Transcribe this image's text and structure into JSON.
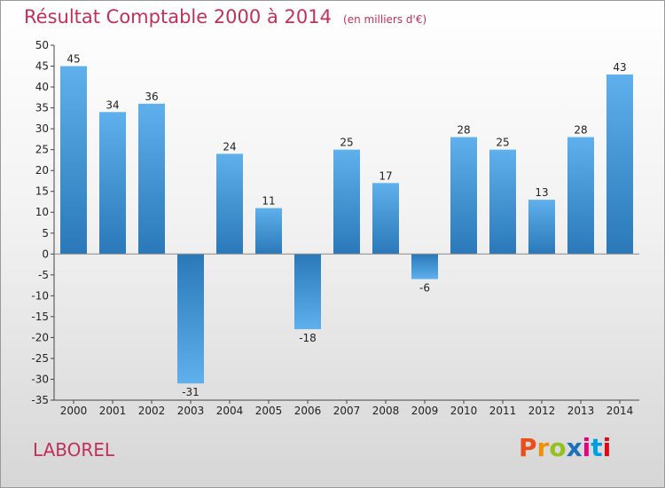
{
  "header": {
    "title": "Résultat Comptable 2000 à 2014",
    "subtitle": "(en milliers d'€)"
  },
  "footer": {
    "commune": "LABOREL",
    "brand_letters": [
      "P",
      "r",
      "o",
      "x",
      "i",
      "t",
      "i"
    ],
    "brand_colors": [
      "#e94e1b",
      "#f29100",
      "#95c11f",
      "#1d71b8",
      "#e6007e",
      "#009fe3",
      "#e30613"
    ]
  },
  "colors": {
    "title": "#c0305a",
    "bar_dark": "#2a78b8",
    "bar_light": "#5fb0ec",
    "axis": "#444444",
    "grid": "#bfbfbf"
  },
  "chart_data": {
    "type": "bar",
    "categories": [
      "2000",
      "2001",
      "2002",
      "2003",
      "2004",
      "2005",
      "2006",
      "2007",
      "2008",
      "2009",
      "2010",
      "2011",
      "2012",
      "2013",
      "2014"
    ],
    "values": [
      45,
      34,
      36,
      -31,
      24,
      11,
      -18,
      25,
      17,
      -6,
      28,
      25,
      13,
      28,
      43
    ],
    "labels": [
      "45",
      "34",
      "36",
      "-31",
      "24",
      "11",
      "-18",
      "25",
      "17",
      "-6",
      "28",
      "25",
      "13",
      "28",
      "43"
    ],
    "ylim": [
      -35,
      50
    ],
    "yticks": [
      "50",
      "45",
      "40",
      "35",
      "30",
      "25",
      "20",
      "15",
      "10",
      "5",
      "0",
      "-5",
      "-10",
      "-15",
      "-20",
      "-25",
      "-30",
      "-35"
    ],
    "grid": false
  }
}
